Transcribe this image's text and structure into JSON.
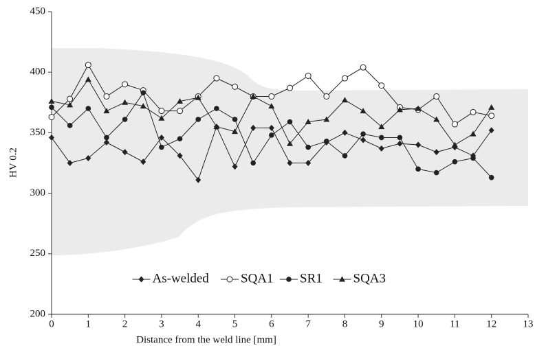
{
  "chart_data": {
    "type": "line",
    "x_label": "Distance from the weld line [mm]",
    "y_label": "HV 0.2",
    "x": [
      0,
      0.5,
      1,
      1.5,
      2,
      2.5,
      3,
      3.5,
      4,
      4.5,
      5,
      5.5,
      6,
      6.5,
      7,
      7.5,
      8,
      8.5,
      9,
      9.5,
      10,
      10.5,
      11,
      11.5,
      12
    ],
    "series": [
      {
        "name": "As-welded",
        "color": "#222222",
        "marker": "diamond",
        "values": [
          346,
          325,
          329,
          342,
          334,
          326,
          346,
          331,
          311,
          355,
          322,
          354,
          354,
          325,
          325,
          342,
          350,
          344,
          337,
          341,
          340,
          334,
          338,
          331,
          352
        ]
      },
      {
        "name": "SQA1",
        "color": "#222222",
        "marker": "circle-open",
        "values": [
          363,
          378,
          406,
          380,
          390,
          385,
          368,
          368,
          380,
          395,
          388,
          380,
          380,
          387,
          397,
          380,
          395,
          404,
          389,
          371,
          369,
          380,
          357,
          367,
          364
        ]
      },
      {
        "name": "SR1",
        "color": "#222222",
        "marker": "circle",
        "values": [
          371,
          356,
          370,
          346,
          361,
          383,
          338,
          345,
          361,
          370,
          361,
          325,
          348,
          359,
          338,
          343,
          331,
          349,
          346,
          346,
          320,
          317,
          326,
          329,
          313
        ]
      },
      {
        "name": "SQA3",
        "color": "#222222",
        "marker": "triangle",
        "values": [
          376,
          373,
          394,
          368,
          375,
          372,
          362,
          376,
          379,
          355,
          351,
          380,
          372,
          341,
          359,
          361,
          377,
          368,
          355,
          369,
          370,
          361,
          340,
          349,
          371
        ]
      }
    ],
    "xlim": [
      0,
      13
    ],
    "xticks": [
      0,
      1,
      2,
      3,
      4,
      5,
      6,
      7,
      8,
      9,
      10,
      11,
      12,
      13
    ],
    "ylim": [
      200,
      450
    ],
    "yticks": [
      200,
      250,
      300,
      350,
      400,
      450
    ],
    "legend": "lower center"
  }
}
